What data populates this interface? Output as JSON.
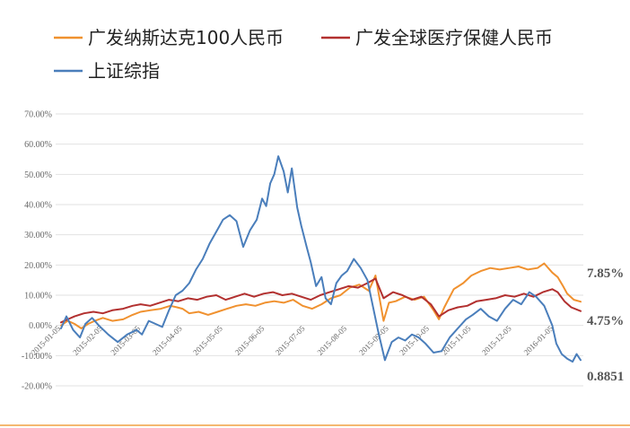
{
  "chart_data": {
    "type": "line",
    "title": "",
    "xlabel": "",
    "ylabel": "",
    "ylim": [
      -20,
      70
    ],
    "yticks": [
      70,
      60,
      50,
      40,
      30,
      20,
      10,
      0,
      -10,
      -20
    ],
    "ytick_labels": [
      "70.00%",
      "60.00%",
      "50.00%",
      "40.00%",
      "30.00%",
      "20.00%",
      "10.00%",
      "0.00%",
      "-10.00%",
      "-20.00%"
    ],
    "xlim": [
      "2015-01-01",
      "2016-01-27"
    ],
    "xtick_labels": [
      "2015-01-05",
      "2015-02-05",
      "2015-03-05",
      "2015-04-05",
      "2015-05-05",
      "2015-06-05",
      "2015-07-05",
      "2015-08-05",
      "2015-09-05",
      "2015-10-05",
      "2015-11-05",
      "2015-12-05",
      "2016-01-05"
    ],
    "grid": true,
    "legend_position": "top",
    "end_labels": [
      "7.85%",
      "4.75%",
      "0.8851"
    ],
    "series": [
      {
        "name": "广发纳斯达克100人民币",
        "color": "#f0912f",
        "points": [
          [
            "2015-01-05",
            0.0
          ],
          [
            "2015-01-10",
            1.5
          ],
          [
            "2015-01-15",
            0.5
          ],
          [
            "2015-01-20",
            -1.0
          ],
          [
            "2015-01-25",
            0.5
          ],
          [
            "2015-01-30",
            1.5
          ],
          [
            "2015-02-05",
            2.5
          ],
          [
            "2015-02-12",
            1.5
          ],
          [
            "2015-02-20",
            2.0
          ],
          [
            "2015-02-27",
            3.5
          ],
          [
            "2015-03-05",
            4.5
          ],
          [
            "2015-03-12",
            5.0
          ],
          [
            "2015-03-20",
            5.5
          ],
          [
            "2015-03-27",
            6.5
          ],
          [
            "2015-04-01",
            6.0
          ],
          [
            "2015-04-05",
            5.5
          ],
          [
            "2015-04-10",
            4.0
          ],
          [
            "2015-04-17",
            4.5
          ],
          [
            "2015-04-24",
            3.5
          ],
          [
            "2015-05-01",
            4.5
          ],
          [
            "2015-05-08",
            5.5
          ],
          [
            "2015-05-15",
            6.5
          ],
          [
            "2015-05-22",
            7.0
          ],
          [
            "2015-05-29",
            6.5
          ],
          [
            "2015-06-05",
            7.5
          ],
          [
            "2015-06-12",
            8.0
          ],
          [
            "2015-06-19",
            7.5
          ],
          [
            "2015-06-26",
            8.5
          ],
          [
            "2015-07-03",
            6.5
          ],
          [
            "2015-07-10",
            5.5
          ],
          [
            "2015-07-17",
            7.0
          ],
          [
            "2015-07-24",
            9.0
          ],
          [
            "2015-07-31",
            10.0
          ],
          [
            "2015-08-07",
            12.5
          ],
          [
            "2015-08-14",
            13.5
          ],
          [
            "2015-08-21",
            11.5
          ],
          [
            "2015-08-26",
            16.5
          ],
          [
            "2015-09-01",
            1.5
          ],
          [
            "2015-09-05",
            7.5
          ],
          [
            "2015-09-10",
            8.0
          ],
          [
            "2015-09-17",
            9.5
          ],
          [
            "2015-09-24",
            8.5
          ],
          [
            "2015-10-01",
            9.5
          ],
          [
            "2015-10-08",
            5.0
          ],
          [
            "2015-10-12",
            2.0
          ],
          [
            "2015-10-16",
            6.0
          ],
          [
            "2015-10-23",
            12.0
          ],
          [
            "2015-10-30",
            14.0
          ],
          [
            "2015-11-05",
            16.5
          ],
          [
            "2015-11-12",
            18.0
          ],
          [
            "2015-11-19",
            19.0
          ],
          [
            "2015-11-26",
            18.5
          ],
          [
            "2015-12-03",
            19.0
          ],
          [
            "2015-12-10",
            19.5
          ],
          [
            "2015-12-17",
            18.5
          ],
          [
            "2015-12-24",
            19.0
          ],
          [
            "2015-12-29",
            20.5
          ],
          [
            "2016-01-04",
            17.5
          ],
          [
            "2016-01-08",
            16.0
          ],
          [
            "2016-01-12",
            13.0
          ],
          [
            "2016-01-15",
            10.5
          ],
          [
            "2016-01-20",
            8.5
          ],
          [
            "2016-01-25",
            7.85
          ]
        ]
      },
      {
        "name": "广发全球医疗保健人民币",
        "color": "#b2302f",
        "points": [
          [
            "2015-01-05",
            1.0
          ],
          [
            "2015-01-10",
            2.0
          ],
          [
            "2015-01-15",
            3.0
          ],
          [
            "2015-01-22",
            4.0
          ],
          [
            "2015-01-29",
            4.5
          ],
          [
            "2015-02-05",
            4.0
          ],
          [
            "2015-02-12",
            5.0
          ],
          [
            "2015-02-20",
            5.5
          ],
          [
            "2015-02-27",
            6.5
          ],
          [
            "2015-03-05",
            7.0
          ],
          [
            "2015-03-12",
            6.5
          ],
          [
            "2015-03-19",
            7.5
          ],
          [
            "2015-03-26",
            8.5
          ],
          [
            "2015-04-02",
            8.0
          ],
          [
            "2015-04-09",
            9.0
          ],
          [
            "2015-04-16",
            8.5
          ],
          [
            "2015-04-23",
            9.5
          ],
          [
            "2015-04-30",
            10.0
          ],
          [
            "2015-05-07",
            8.5
          ],
          [
            "2015-05-14",
            9.5
          ],
          [
            "2015-05-21",
            10.5
          ],
          [
            "2015-05-28",
            9.5
          ],
          [
            "2015-06-04",
            10.5
          ],
          [
            "2015-06-11",
            11.0
          ],
          [
            "2015-06-18",
            10.0
          ],
          [
            "2015-06-25",
            10.5
          ],
          [
            "2015-07-02",
            9.5
          ],
          [
            "2015-07-09",
            8.5
          ],
          [
            "2015-07-16",
            10.0
          ],
          [
            "2015-07-23",
            11.0
          ],
          [
            "2015-07-30",
            12.0
          ],
          [
            "2015-08-06",
            13.0
          ],
          [
            "2015-08-13",
            12.5
          ],
          [
            "2015-08-20",
            14.0
          ],
          [
            "2015-08-26",
            15.5
          ],
          [
            "2015-09-01",
            9.0
          ],
          [
            "2015-09-08",
            11.0
          ],
          [
            "2015-09-15",
            10.0
          ],
          [
            "2015-09-22",
            8.5
          ],
          [
            "2015-09-29",
            9.5
          ],
          [
            "2015-10-06",
            7.0
          ],
          [
            "2015-10-12",
            3.0
          ],
          [
            "2015-10-19",
            5.0
          ],
          [
            "2015-10-26",
            6.0
          ],
          [
            "2015-11-02",
            6.5
          ],
          [
            "2015-11-09",
            8.0
          ],
          [
            "2015-11-16",
            8.5
          ],
          [
            "2015-11-23",
            9.0
          ],
          [
            "2015-11-30",
            10.0
          ],
          [
            "2015-12-07",
            9.5
          ],
          [
            "2015-12-14",
            10.5
          ],
          [
            "2015-12-21",
            9.5
          ],
          [
            "2015-12-28",
            11.0
          ],
          [
            "2016-01-04",
            12.0
          ],
          [
            "2016-01-08",
            11.0
          ],
          [
            "2016-01-13",
            8.0
          ],
          [
            "2016-01-18",
            6.0
          ],
          [
            "2016-01-25",
            4.75
          ]
        ]
      },
      {
        "name": "上证综指",
        "color": "#4a7ebb",
        "points": [
          [
            "2015-01-05",
            -1.0
          ],
          [
            "2015-01-09",
            3.0
          ],
          [
            "2015-01-14",
            -1.5
          ],
          [
            "2015-01-19",
            -4.0
          ],
          [
            "2015-01-23",
            0.5
          ],
          [
            "2015-01-28",
            2.5
          ],
          [
            "2015-02-02",
            0.0
          ],
          [
            "2015-02-09",
            -3.0
          ],
          [
            "2015-02-16",
            -5.5
          ],
          [
            "2015-02-23",
            -3.0
          ],
          [
            "2015-03-02",
            -1.5
          ],
          [
            "2015-03-06",
            -3.0
          ],
          [
            "2015-03-11",
            1.5
          ],
          [
            "2015-03-16",
            0.5
          ],
          [
            "2015-03-21",
            -0.5
          ],
          [
            "2015-03-26",
            5.0
          ],
          [
            "2015-03-31",
            10.0
          ],
          [
            "2015-04-05",
            11.5
          ],
          [
            "2015-04-10",
            14.0
          ],
          [
            "2015-04-15",
            18.5
          ],
          [
            "2015-04-20",
            22.0
          ],
          [
            "2015-04-25",
            27.0
          ],
          [
            "2015-04-30",
            31.0
          ],
          [
            "2015-05-05",
            35.0
          ],
          [
            "2015-05-10",
            36.5
          ],
          [
            "2015-05-15",
            34.5
          ],
          [
            "2015-05-20",
            26.0
          ],
          [
            "2015-05-25",
            31.5
          ],
          [
            "2015-05-30",
            35.0
          ],
          [
            "2015-06-03",
            42.0
          ],
          [
            "2015-06-06",
            39.5
          ],
          [
            "2015-06-09",
            47.0
          ],
          [
            "2015-06-12",
            50.0
          ],
          [
            "2015-06-15",
            56.0
          ],
          [
            "2015-06-19",
            51.0
          ],
          [
            "2015-06-22",
            44.0
          ],
          [
            "2015-06-25",
            52.0
          ],
          [
            "2015-06-29",
            39.0
          ],
          [
            "2015-07-02",
            33.0
          ],
          [
            "2015-07-06",
            26.0
          ],
          [
            "2015-07-09",
            21.0
          ],
          [
            "2015-07-13",
            13.0
          ],
          [
            "2015-07-17",
            16.0
          ],
          [
            "2015-07-20",
            9.0
          ],
          [
            "2015-07-24",
            7.0
          ],
          [
            "2015-07-28",
            14.0
          ],
          [
            "2015-08-01",
            16.5
          ],
          [
            "2015-08-05",
            18.0
          ],
          [
            "2015-08-10",
            22.0
          ],
          [
            "2015-08-15",
            19.0
          ],
          [
            "2015-08-20",
            15.0
          ],
          [
            "2015-08-24",
            6.5
          ],
          [
            "2015-08-28",
            -2.0
          ],
          [
            "2015-09-02",
            -11.5
          ],
          [
            "2015-09-07",
            -5.5
          ],
          [
            "2015-09-12",
            -4.0
          ],
          [
            "2015-09-17",
            -5.0
          ],
          [
            "2015-09-22",
            -3.0
          ],
          [
            "2015-09-27",
            -4.0
          ],
          [
            "2015-10-02",
            -6.0
          ],
          [
            "2015-10-08",
            -9.0
          ],
          [
            "2015-10-14",
            -8.5
          ],
          [
            "2015-10-20",
            -4.0
          ],
          [
            "2015-10-26",
            -1.0
          ],
          [
            "2015-11-01",
            2.0
          ],
          [
            "2015-11-06",
            3.5
          ],
          [
            "2015-11-12",
            5.5
          ],
          [
            "2015-11-18",
            3.0
          ],
          [
            "2015-11-24",
            1.5
          ],
          [
            "2015-11-30",
            5.5
          ],
          [
            "2015-12-06",
            8.5
          ],
          [
            "2015-12-12",
            7.0
          ],
          [
            "2015-12-18",
            11.0
          ],
          [
            "2015-12-23",
            9.5
          ],
          [
            "2015-12-29",
            6.5
          ],
          [
            "2016-01-04",
            0.0
          ],
          [
            "2016-01-07",
            -6.0
          ],
          [
            "2016-01-11",
            -9.5
          ],
          [
            "2016-01-15",
            -11.0
          ],
          [
            "2016-01-19",
            -12.0
          ],
          [
            "2016-01-22",
            -9.5
          ],
          [
            "2016-01-25",
            -11.49
          ]
        ]
      }
    ]
  }
}
